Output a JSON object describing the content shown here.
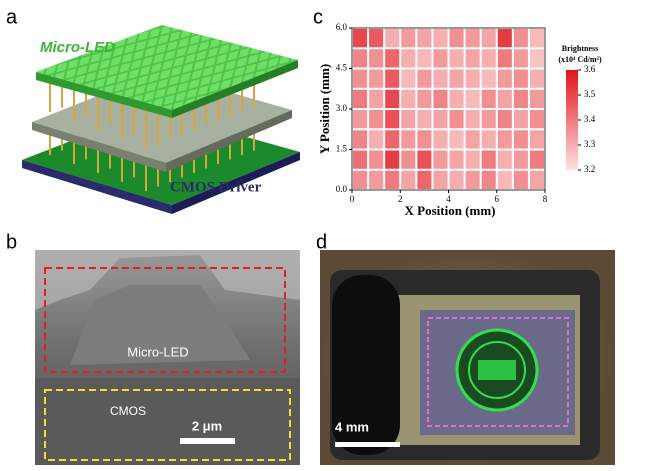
{
  "panels": [
    "a",
    "b",
    "c",
    "d"
  ],
  "panel_a": {
    "top_label": "Micro-LED",
    "bottom_label": "CMOS Driver"
  },
  "panel_b": {
    "upper_label": "Micro-LED",
    "lower_label": "CMOS",
    "scale_bar": "2 μm"
  },
  "panel_d": {
    "scale_bar": "4 mm"
  },
  "chart_data": {
    "type": "heatmap",
    "xlabel": "X Position (mm)",
    "ylabel": "Y Position (mm)",
    "xlim": [
      0,
      8
    ],
    "ylim": [
      0,
      6
    ],
    "xticks": [
      0,
      2,
      4,
      6,
      8
    ],
    "yticks": [
      {
        "value": 0,
        "label": "0.0"
      },
      {
        "value": 1.5,
        "label": "1.5"
      },
      {
        "value": 3,
        "label": "3.0"
      },
      {
        "value": 4.5,
        "label": "4.5"
      },
      {
        "value": 6,
        "label": "6.0"
      }
    ],
    "values": [
      [
        3.5,
        3.46,
        3.3,
        3.34,
        3.32,
        3.3,
        3.36,
        3.34,
        3.32,
        3.52,
        3.36,
        3.28
      ],
      [
        3.38,
        3.36,
        3.44,
        3.3,
        3.28,
        3.34,
        3.3,
        3.32,
        3.3,
        3.4,
        3.34,
        3.26
      ],
      [
        3.36,
        3.34,
        3.46,
        3.28,
        3.34,
        3.3,
        3.32,
        3.3,
        3.28,
        3.34,
        3.36,
        3.3
      ],
      [
        3.4,
        3.32,
        3.5,
        3.3,
        3.34,
        3.38,
        3.3,
        3.28,
        3.36,
        3.32,
        3.38,
        3.34
      ],
      [
        3.34,
        3.36,
        3.48,
        3.32,
        3.3,
        3.32,
        3.36,
        3.3,
        3.34,
        3.38,
        3.32,
        3.36
      ],
      [
        3.38,
        3.3,
        3.44,
        3.34,
        3.36,
        3.3,
        3.28,
        3.32,
        3.3,
        3.34,
        3.36,
        3.32
      ],
      [
        3.42,
        3.36,
        3.52,
        3.36,
        3.48,
        3.34,
        3.32,
        3.3,
        3.4,
        3.3,
        3.34,
        3.4
      ],
      [
        3.36,
        3.34,
        3.4,
        3.32,
        3.44,
        3.32,
        3.3,
        3.34,
        3.38,
        3.28,
        3.36,
        3.32
      ]
    ],
    "colorbar": {
      "title": "Brightness",
      "unit": "(x10⁴ Cd/m²)",
      "clim": [
        3.2,
        3.6
      ],
      "ticks": [
        3.2,
        3.3,
        3.4,
        3.5,
        3.6
      ],
      "color_low": "#fde2e2",
      "color_high": "#e0131c"
    }
  }
}
